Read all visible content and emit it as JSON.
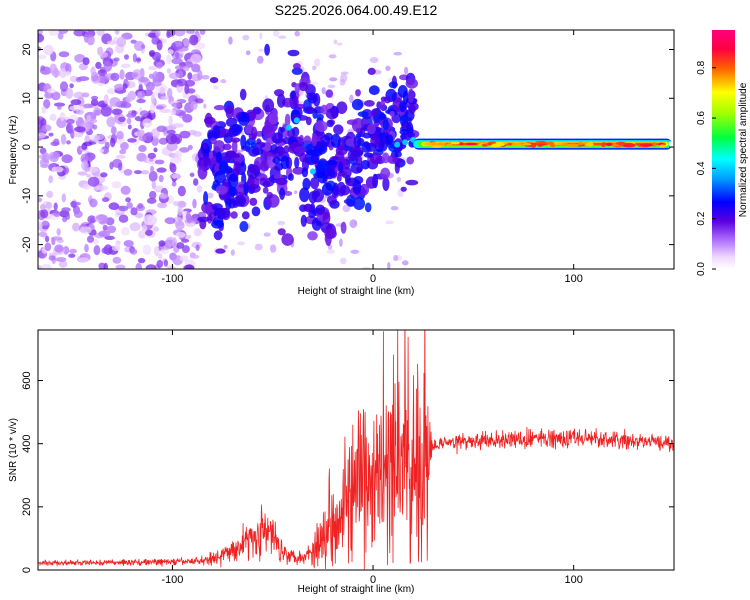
{
  "title": "S225.2026.064.00.49.E12",
  "colors": {
    "snr_line": "#ee2222",
    "axis": "#000000",
    "background": "#ffffff"
  },
  "chart_data": [
    {
      "type": "heatmap",
      "name": "spectrogram",
      "xlabel": "Height of straight line (km)",
      "ylabel": "Frequency (Hz)",
      "xlim": [
        -167,
        150
      ],
      "ylim": [
        -25,
        24
      ],
      "xticks": [
        -100,
        0,
        100
      ],
      "yticks": [
        -20,
        -10,
        0,
        10,
        20
      ],
      "colorbar": {
        "label": "Normalized spectral amplitude",
        "range": [
          0.0,
          0.95
        ],
        "ticks": [
          0.0,
          0.2,
          0.4,
          0.6,
          0.8
        ],
        "colormap": "rainbow (violet-blue-cyan-green-yellow-red-magenta)"
      },
      "regions": [
        {
          "description": "diffuse noise",
          "x_range": [
            -167,
            -85
          ],
          "amplitude": 0.05
        },
        {
          "description": "scattered broadband returns",
          "x_range": [
            -85,
            20
          ],
          "amplitude": 0.12
        },
        {
          "description": "narrow tone near 0.5 Hz",
          "x_range": [
            20,
            150
          ],
          "center_freq": 0.5,
          "amplitude": 0.9
        }
      ]
    },
    {
      "type": "line",
      "name": "snr",
      "xlabel": "Height of straight line (km)",
      "ylabel": "SNR (10 * v/v)",
      "xlim": [
        -167,
        150
      ],
      "ylim": [
        0,
        760
      ],
      "xticks": [
        -100,
        0,
        100
      ],
      "yticks": [
        0,
        200,
        400,
        600
      ],
      "series": [
        {
          "name": "SNR",
          "x": [
            -167,
            -150,
            -130,
            -110,
            -95,
            -85,
            -75,
            -68,
            -62,
            -55,
            -50,
            -45,
            -40,
            -35,
            -30,
            -25,
            -20,
            -15,
            -10,
            -5,
            0,
            5,
            10,
            15,
            20,
            25,
            28,
            30,
            40,
            60,
            80,
            100,
            120,
            140,
            150
          ],
          "y": [
            22,
            22,
            24,
            25,
            26,
            30,
            45,
            70,
            100,
            120,
            110,
            60,
            45,
            40,
            60,
            110,
            170,
            220,
            240,
            260,
            270,
            290,
            320,
            340,
            360,
            370,
            330,
            400,
            405,
            410,
            415,
            420,
            410,
            405,
            400
          ],
          "noise_amplitude": [
            8,
            8,
            9,
            10,
            10,
            12,
            25,
            40,
            55,
            70,
            60,
            35,
            20,
            25,
            50,
            90,
            150,
            180,
            200,
            230,
            240,
            260,
            280,
            300,
            320,
            330,
            200,
            20,
            22,
            24,
            28,
            30,
            25,
            22,
            20
          ]
        }
      ]
    }
  ]
}
